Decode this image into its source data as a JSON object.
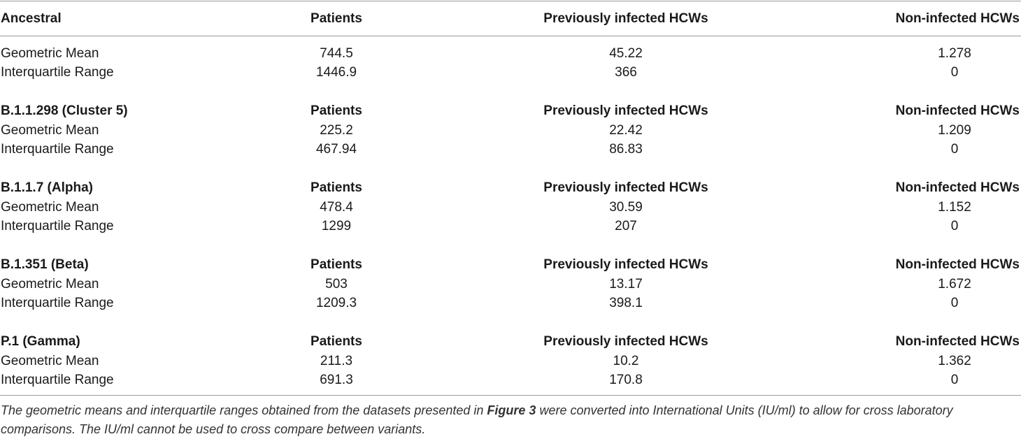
{
  "columns": {
    "patients": "Patients",
    "previously_infected": "Previously infected HCWs",
    "non_infected": "Non-infected HCWs"
  },
  "sections": [
    {
      "variant": "Ancestral",
      "rows": [
        {
          "label": "Geometric Mean",
          "patients": "744.5",
          "previously_infected": "45.22",
          "non_infected": "1.278"
        },
        {
          "label": "Interquartile Range",
          "patients": "1446.9",
          "previously_infected": "366",
          "non_infected": "0"
        }
      ]
    },
    {
      "variant": "B.1.1.298 (Cluster 5)",
      "rows": [
        {
          "label": "Geometric Mean",
          "patients": "225.2",
          "previously_infected": "22.42",
          "non_infected": "1.209"
        },
        {
          "label": "Interquartile Range",
          "patients": "467.94",
          "previously_infected": "86.83",
          "non_infected": "0"
        }
      ]
    },
    {
      "variant": "B.1.1.7 (Alpha)",
      "rows": [
        {
          "label": "Geometric Mean",
          "patients": "478.4",
          "previously_infected": "30.59",
          "non_infected": "1.152"
        },
        {
          "label": "Interquartile Range",
          "patients": "1299",
          "previously_infected": "207",
          "non_infected": "0"
        }
      ]
    },
    {
      "variant": "B.1.351 (Beta)",
      "rows": [
        {
          "label": "Geometric Mean",
          "patients": "503",
          "previously_infected": "13.17",
          "non_infected": "1.672"
        },
        {
          "label": "Interquartile Range",
          "patients": "1209.3",
          "previously_infected": "398.1",
          "non_infected": "0"
        }
      ]
    },
    {
      "variant": "P.1 (Gamma)",
      "rows": [
        {
          "label": "Geometric Mean",
          "patients": "211.3",
          "previously_infected": "10.2",
          "non_infected": "1.362"
        },
        {
          "label": "Interquartile Range",
          "patients": "691.3",
          "previously_infected": "170.8",
          "non_infected": "0"
        }
      ]
    }
  ],
  "caption": {
    "before_ref": "The geometric means and interquartile ranges obtained from the datasets presented in ",
    "ref": "Figure 3",
    "after_ref": " were converted into International Units (IU/ml) to allow for cross laboratory comparisons. The IU/ml cannot be used to cross compare between variants."
  }
}
